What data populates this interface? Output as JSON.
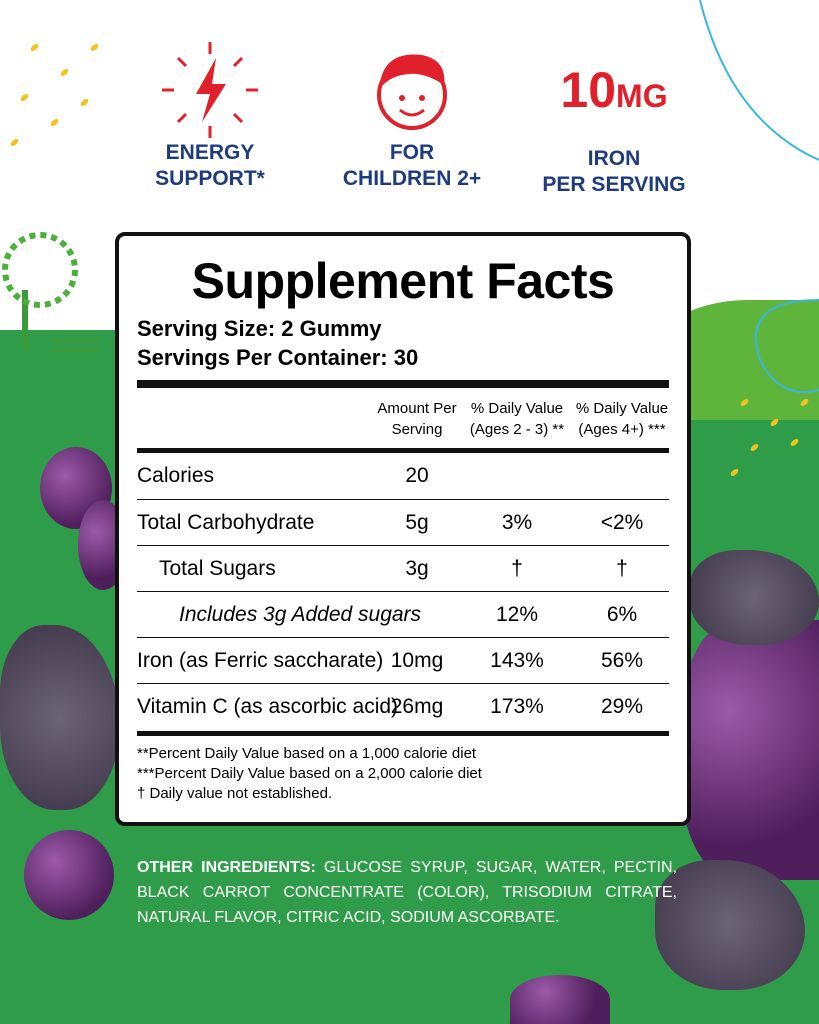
{
  "features": [
    {
      "icon": "lightning-icon",
      "line1": "ENERGY",
      "line2": "SUPPORT*"
    },
    {
      "icon": "child-face-icon",
      "line1": "FOR",
      "line2": "CHILDREN 2+"
    },
    {
      "value": "10",
      "unit": "MG",
      "line1": "IRON",
      "line2": "PER SERVING"
    }
  ],
  "facts": {
    "title": "Supplement Facts",
    "serving_size": "Serving Size: 2 Gummy",
    "servings_per_container": "Servings Per Container: 30",
    "headers": {
      "amount": "Amount Per Serving",
      "dv1": "% Daily Value (Ages 2 - 3) **",
      "dv2": "% Daily Value (Ages 4+) ***"
    },
    "rows": [
      {
        "name": "Calories",
        "amount": "20",
        "dv1": "",
        "dv2": ""
      },
      {
        "name": "Total Carbohydrate",
        "amount": "5g",
        "dv1": "3%",
        "dv2": "<2%"
      },
      {
        "name": "Total Sugars",
        "amount": "3g",
        "dv1": "†",
        "dv2": "†"
      },
      {
        "name": "Includes 3g Added sugars",
        "amount": "",
        "dv1": "12%",
        "dv2": "6%"
      },
      {
        "name": "Iron (as Ferric saccharate)",
        "amount": "10mg",
        "dv1": "143%",
        "dv2": "56%"
      },
      {
        "name": "Vitamin C (as ascorbic acid)",
        "amount": "26mg",
        "dv1": "173%",
        "dv2": "29%"
      }
    ],
    "footnotes": [
      "**Percent Daily Value based on a 1,000 calorie diet",
      "***Percent Daily Value based on a 2,000 calorie diet",
      "† Daily value not established."
    ]
  },
  "ingredients": {
    "label": "OTHER INGREDIENTS:",
    "text": " GLUCOSE SYRUP, SUGAR, WATER, PECTIN, BLACK CARROT CONCENTRATE (COLOR), TRISODIUM CITRATE, NATURAL FLAVOR, CITRIC ACID, SODIUM ASCORBATE."
  },
  "colors": {
    "navy": "#1e3c7d",
    "red": "#e0202a",
    "green": "#2f9c4a"
  }
}
